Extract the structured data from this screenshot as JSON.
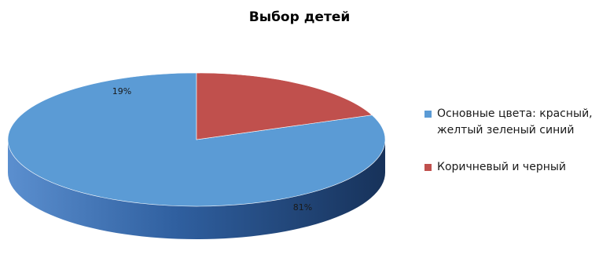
{
  "chart_data": {
    "type": "pie",
    "title": "Выбор детей",
    "slices": [
      {
        "name": "Основные цвета: красный, желтый зеленый синий",
        "value": 81,
        "label": "81%",
        "color": "#5b9bd5"
      },
      {
        "name": "Коричневый и черный",
        "value": 19,
        "label": "19%",
        "color": "#c0504d"
      }
    ],
    "legend": {
      "position": "right",
      "items": [
        {
          "label": "Основные цвета: красный, желтый зеленый синий",
          "color": "#5b9bd5"
        },
        {
          "label": "Коричневый и черный",
          "color": "#c0504d"
        }
      ]
    },
    "style": "3d"
  }
}
